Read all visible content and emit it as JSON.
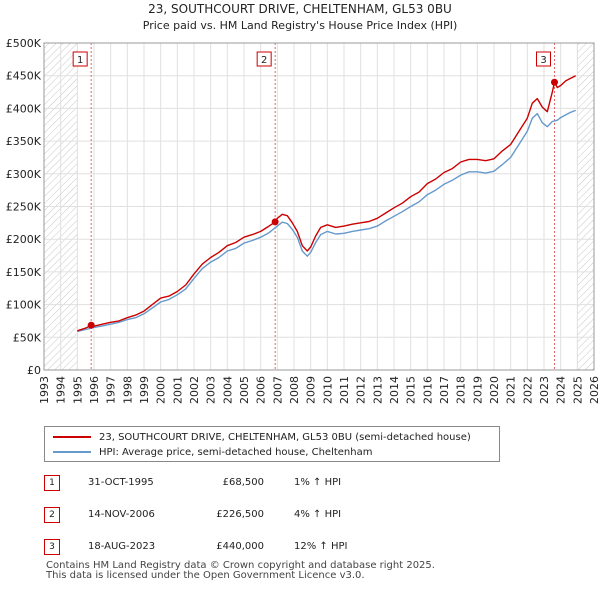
{
  "chart_data": {
    "type": "line",
    "title": "23, SOUTHCOURT DRIVE, CHELTENHAM, GL53 0BU",
    "subtitle": "Price paid vs. HM Land Registry's House Price Index (HPI)",
    "xlim": [
      1993,
      2026
    ],
    "ylim": [
      0,
      500000
    ],
    "x_ticks": [
      "1993",
      "1994",
      "1995",
      "1996",
      "1997",
      "1998",
      "1999",
      "2000",
      "2001",
      "2002",
      "2003",
      "2004",
      "2005",
      "2006",
      "2007",
      "2008",
      "2009",
      "2010",
      "2011",
      "2012",
      "2013",
      "2014",
      "2015",
      "2016",
      "2017",
      "2018",
      "2019",
      "2020",
      "2021",
      "2022",
      "2023",
      "2024",
      "2025",
      "2026"
    ],
    "y_ticks": [
      {
        "value": 0,
        "label": "£0"
      },
      {
        "value": 50000,
        "label": "£50K"
      },
      {
        "value": 100000,
        "label": "£100K"
      },
      {
        "value": 150000,
        "label": "£150K"
      },
      {
        "value": 200000,
        "label": "£200K"
      },
      {
        "value": 250000,
        "label": "£250K"
      },
      {
        "value": 300000,
        "label": "£300K"
      },
      {
        "value": 350000,
        "label": "£350K"
      },
      {
        "value": 400000,
        "label": "£400K"
      },
      {
        "value": 450000,
        "label": "£450K"
      },
      {
        "value": 500000,
        "label": "£500K"
      }
    ],
    "grid": true,
    "hatched_ranges": [
      [
        1993,
        1995.0
      ],
      [
        2025.0,
        2026
      ]
    ],
    "series": [
      {
        "name": "23, SOUTHCOURT DRIVE, CHELTENHAM, GL53 0BU (semi-detached house)",
        "color": "#cc0000",
        "x": [
          1995.0,
          1995.5,
          1995.83,
          1996.0,
          1996.5,
          1997.0,
          1997.5,
          1998.0,
          1998.5,
          1999.0,
          1999.5,
          2000.0,
          2000.5,
          2001.0,
          2001.5,
          2002.0,
          2002.5,
          2003.0,
          2003.5,
          2004.0,
          2004.5,
          2005.0,
          2005.5,
          2006.0,
          2006.5,
          2006.87,
          2007.0,
          2007.3,
          2007.6,
          2007.9,
          2008.2,
          2008.5,
          2008.8,
          2009.0,
          2009.3,
          2009.6,
          2010.0,
          2010.5,
          2011.0,
          2011.5,
          2012.0,
          2012.5,
          2013.0,
          2013.5,
          2014.0,
          2014.5,
          2015.0,
          2015.5,
          2016.0,
          2016.5,
          2017.0,
          2017.5,
          2018.0,
          2018.5,
          2019.0,
          2019.5,
          2020.0,
          2020.5,
          2021.0,
          2021.5,
          2022.0,
          2022.3,
          2022.6,
          2022.9,
          2023.2,
          2023.5,
          2023.63,
          2023.8,
          2024.0,
          2024.3,
          2024.6,
          2024.9
        ],
        "y": [
          60000,
          64000,
          68500,
          67000,
          70000,
          73000,
          75000,
          80000,
          84000,
          90000,
          100000,
          110000,
          113000,
          120000,
          130000,
          147000,
          162000,
          172000,
          180000,
          190000,
          195000,
          203000,
          207000,
          212000,
          220000,
          226500,
          232000,
          238000,
          236000,
          225000,
          212000,
          190000,
          182000,
          188000,
          205000,
          218000,
          222000,
          218000,
          220000,
          223000,
          225000,
          227000,
          232000,
          240000,
          248000,
          255000,
          265000,
          272000,
          285000,
          292000,
          302000,
          308000,
          318000,
          322000,
          322000,
          320000,
          323000,
          335000,
          345000,
          365000,
          385000,
          408000,
          415000,
          402000,
          395000,
          425000,
          440000,
          432000,
          435000,
          442000,
          446000,
          450000
        ]
      },
      {
        "name": "HPI: Average price, semi-detached house, Cheltenham",
        "color": "#6699cc",
        "x": [
          1995.0,
          1995.5,
          1996.0,
          1996.5,
          1997.0,
          1997.5,
          1998.0,
          1998.5,
          1999.0,
          1999.5,
          2000.0,
          2000.5,
          2001.0,
          2001.5,
          2002.0,
          2002.5,
          2003.0,
          2003.5,
          2004.0,
          2004.5,
          2005.0,
          2005.5,
          2006.0,
          2006.5,
          2007.0,
          2007.3,
          2007.6,
          2007.9,
          2008.2,
          2008.5,
          2008.8,
          2009.0,
          2009.3,
          2009.6,
          2010.0,
          2010.5,
          2011.0,
          2011.5,
          2012.0,
          2012.5,
          2013.0,
          2013.5,
          2014.0,
          2014.5,
          2015.0,
          2015.5,
          2016.0,
          2016.5,
          2017.0,
          2017.5,
          2018.0,
          2018.5,
          2019.0,
          2019.5,
          2020.0,
          2020.5,
          2021.0,
          2021.5,
          2022.0,
          2022.3,
          2022.6,
          2022.9,
          2023.2,
          2023.5,
          2023.8,
          2024.0,
          2024.3,
          2024.6,
          2024.9
        ],
        "y": [
          59000,
          62000,
          65000,
          67500,
          70000,
          73000,
          77000,
          80000,
          86000,
          95000,
          104000,
          108000,
          115000,
          124000,
          140000,
          155000,
          165000,
          172000,
          182000,
          186000,
          194000,
          198000,
          203000,
          210000,
          220000,
          226000,
          224000,
          215000,
          203000,
          182000,
          174000,
          180000,
          195000,
          207000,
          212000,
          208000,
          209000,
          212000,
          214000,
          216000,
          220000,
          228000,
          235000,
          242000,
          250000,
          257000,
          268000,
          275000,
          284000,
          290000,
          298000,
          303000,
          303000,
          301000,
          304000,
          314000,
          325000,
          345000,
          365000,
          385000,
          392000,
          378000,
          372000,
          380000,
          382000,
          386000,
          390000,
          394000,
          397000
        ]
      }
    ],
    "annotations": [
      {
        "label": "1",
        "x": 1995.83,
        "y": 68500
      },
      {
        "label": "2",
        "x": 2006.87,
        "y": 226500
      },
      {
        "label": "3",
        "x": 2023.63,
        "y": 440000
      }
    ]
  },
  "legend": {
    "items": [
      {
        "label": "23, SOUTHCOURT DRIVE, CHELTENHAM, GL53 0BU (semi-detached house)",
        "color": "#cc0000"
      },
      {
        "label": "HPI: Average price, semi-detached house, Cheltenham",
        "color": "#6699cc"
      }
    ]
  },
  "transactions": [
    {
      "num": "1",
      "date": "31-OCT-1995",
      "price": "£68,500",
      "hpi": "1% ↑ HPI"
    },
    {
      "num": "2",
      "date": "14-NOV-2006",
      "price": "£226,500",
      "hpi": "4% ↑ HPI"
    },
    {
      "num": "3",
      "date": "18-AUG-2023",
      "price": "£440,000",
      "hpi": "12% ↑ HPI"
    }
  ],
  "footer": {
    "line1": "Contains HM Land Registry data © Crown copyright and database right 2025.",
    "line2": "This data is licensed under the Open Government Licence v3.0."
  }
}
